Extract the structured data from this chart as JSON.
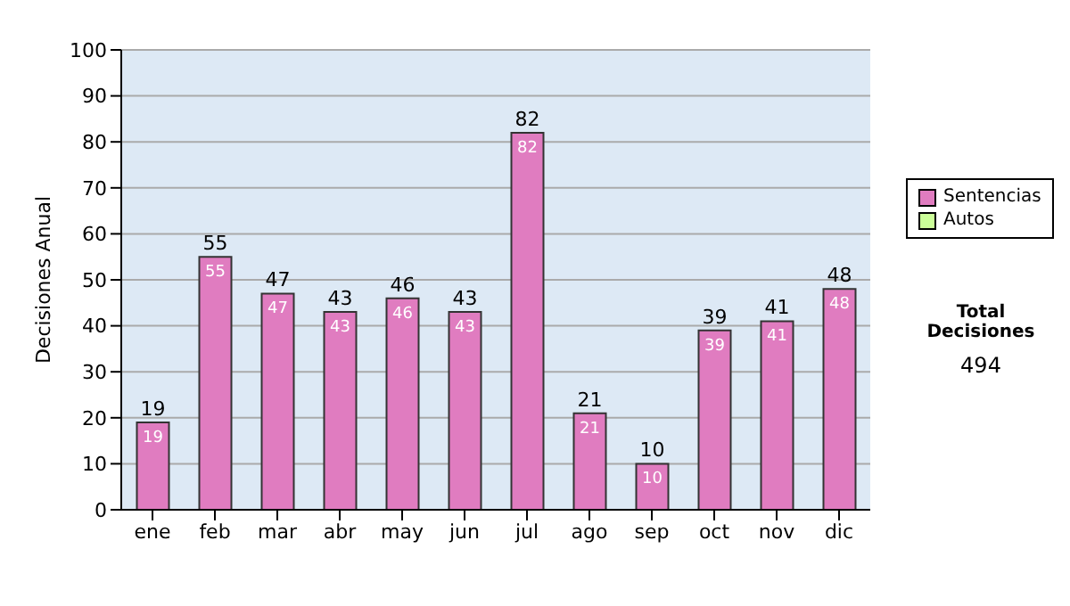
{
  "chart_data": {
    "type": "bar",
    "ylabel": "Decisiones Anual",
    "categories": [
      "ene",
      "feb",
      "mar",
      "abr",
      "may",
      "jun",
      "jul",
      "ago",
      "sep",
      "oct",
      "nov",
      "dic"
    ],
    "series": [
      {
        "name": "Sentencias",
        "color": "#e07cc0",
        "values": [
          19,
          55,
          47,
          43,
          46,
          43,
          82,
          21,
          10,
          39,
          41,
          48
        ],
        "value_labels": [
          "19",
          "55",
          "47",
          "43",
          "46",
          "43",
          "82",
          "21",
          "10",
          "39",
          "41",
          "48"
        ]
      },
      {
        "name": "Autos",
        "color": "#ccff99",
        "values": [
          0,
          0,
          0,
          0,
          0,
          0,
          0,
          0,
          0,
          0,
          0,
          0
        ]
      }
    ],
    "stacked": true,
    "totals": [
      "19",
      "55",
      "47",
      "43",
      "46",
      "43",
      "82",
      "21",
      "10",
      "39",
      "41",
      "48"
    ],
    "ylim": [
      0,
      100
    ],
    "yticks": [
      0,
      10,
      20,
      30,
      40,
      50,
      60,
      70,
      80,
      90,
      100
    ],
    "grid": "y",
    "legend": "right",
    "annotations": [
      "Total Decisiones",
      "494"
    ]
  }
}
